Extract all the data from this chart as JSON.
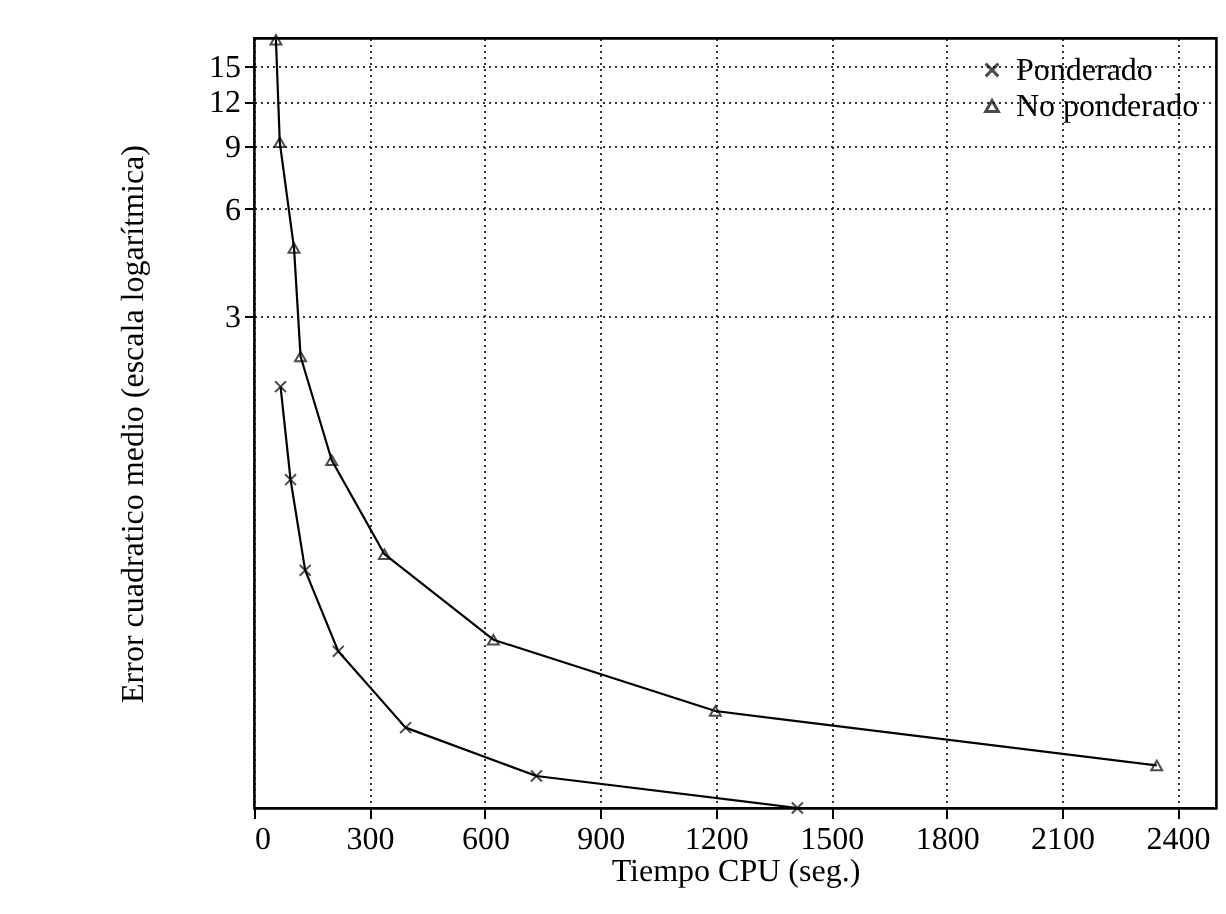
{
  "chart_data": {
    "type": "line",
    "xlabel": "Tiempo CPU (seg.)",
    "ylabel": "Error cuadratico medio (escala logarítmica)",
    "log": "y",
    "grid": true,
    "legend": "top right",
    "line_style": "solid",
    "xlim": [
      0,
      2500
    ],
    "xticks": [
      0,
      300,
      600,
      900,
      1200,
      1500,
      1800,
      2100,
      2400
    ],
    "ylim": [
      0.127,
      18
    ],
    "yticks": [
      3,
      6,
      9,
      12,
      15
    ],
    "series": [
      {
        "name": "Ponderado",
        "color": "#000000",
        "marker": "cross",
        "x": [
          69,
          95,
          133,
          219,
          394,
          734,
          1412
        ],
        "values": [
          1.91,
          1.05,
          0.586,
          0.348,
          0.213,
          0.156,
          0.127
        ]
      },
      {
        "name": "No ponderado",
        "color": "#000000",
        "marker": "triangle",
        "x": [
          57,
          67,
          104,
          121,
          202,
          339,
          622,
          1199,
          2346
        ],
        "values": [
          17.8,
          9.2,
          4.66,
          2.32,
          1.19,
          0.65,
          0.375,
          0.237,
          0.167
        ]
      }
    ]
  }
}
